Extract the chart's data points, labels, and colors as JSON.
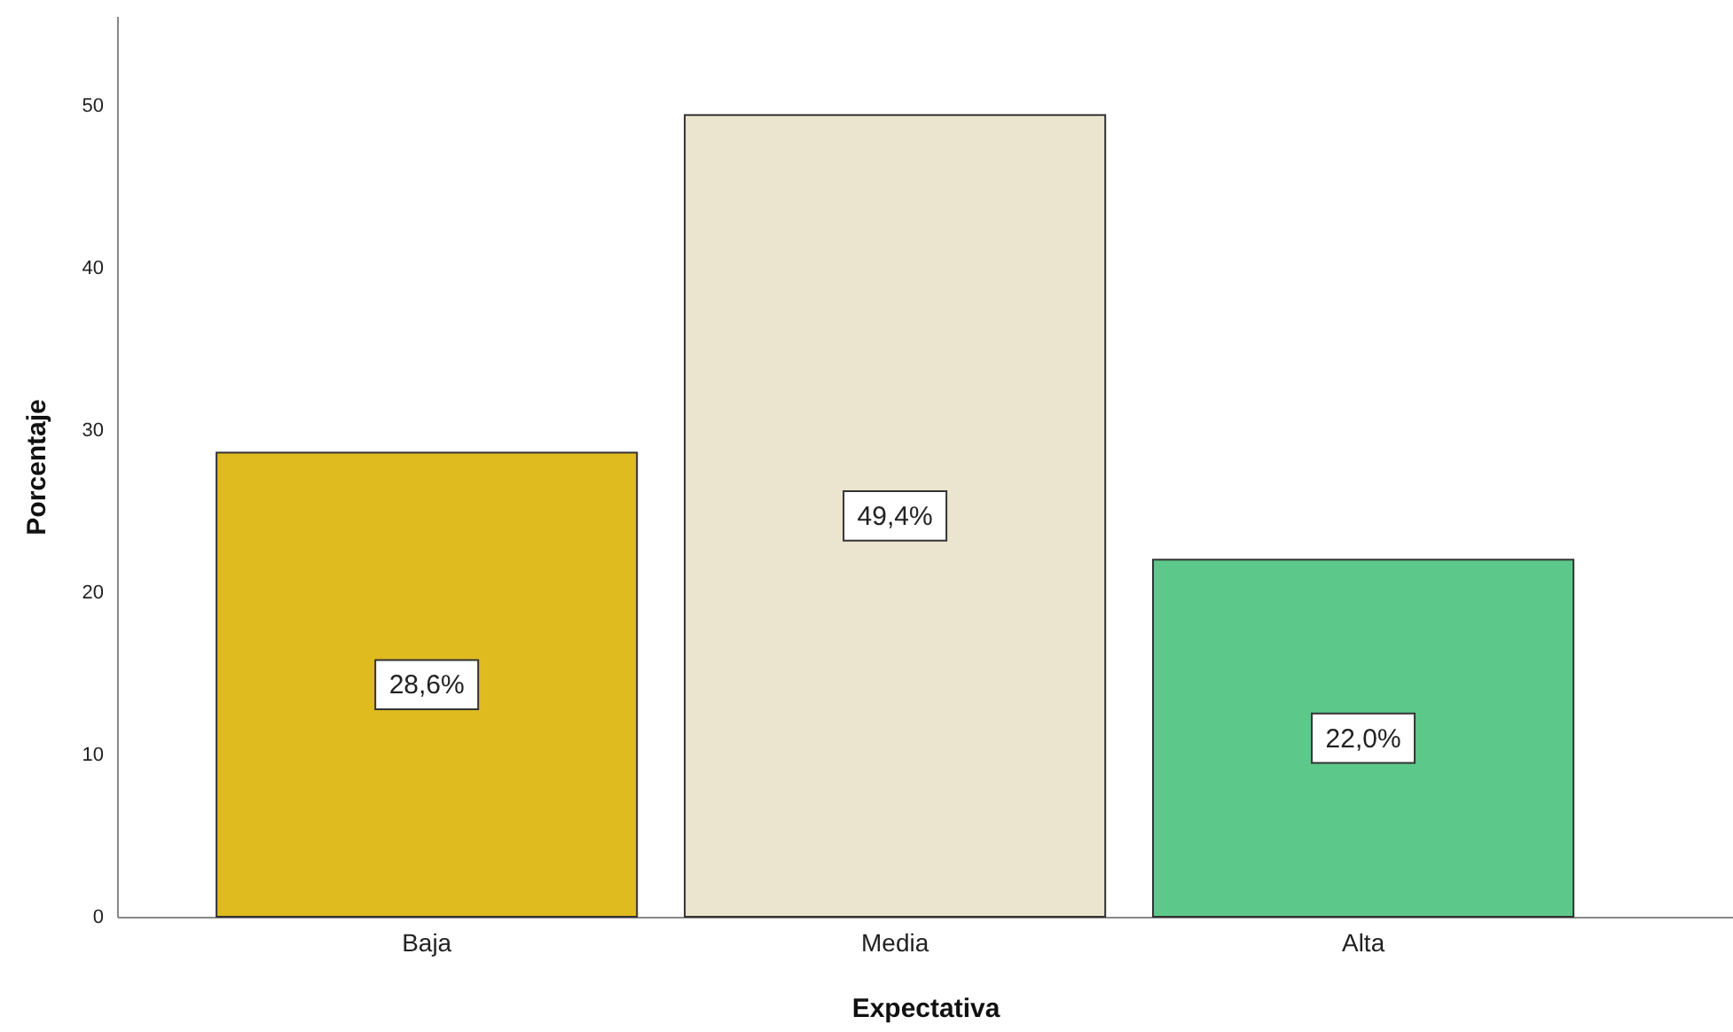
{
  "chart_data": {
    "type": "bar",
    "xlabel": "Expectativa",
    "ylabel": "Porcentaje",
    "categories": [
      "Baja",
      "Media",
      "Alta"
    ],
    "values": [
      28.6,
      49.4,
      22.0
    ],
    "colors": [
      "#e0bb1f",
      "#ebe4cf",
      "#5cc98a"
    ],
    "value_labels": [
      "28,6%",
      "49,4%",
      "22,0%"
    ],
    "ylim": [
      0,
      55.5
    ],
    "yticks": [
      0,
      10,
      20,
      30,
      40,
      50
    ],
    "grid": false
  }
}
